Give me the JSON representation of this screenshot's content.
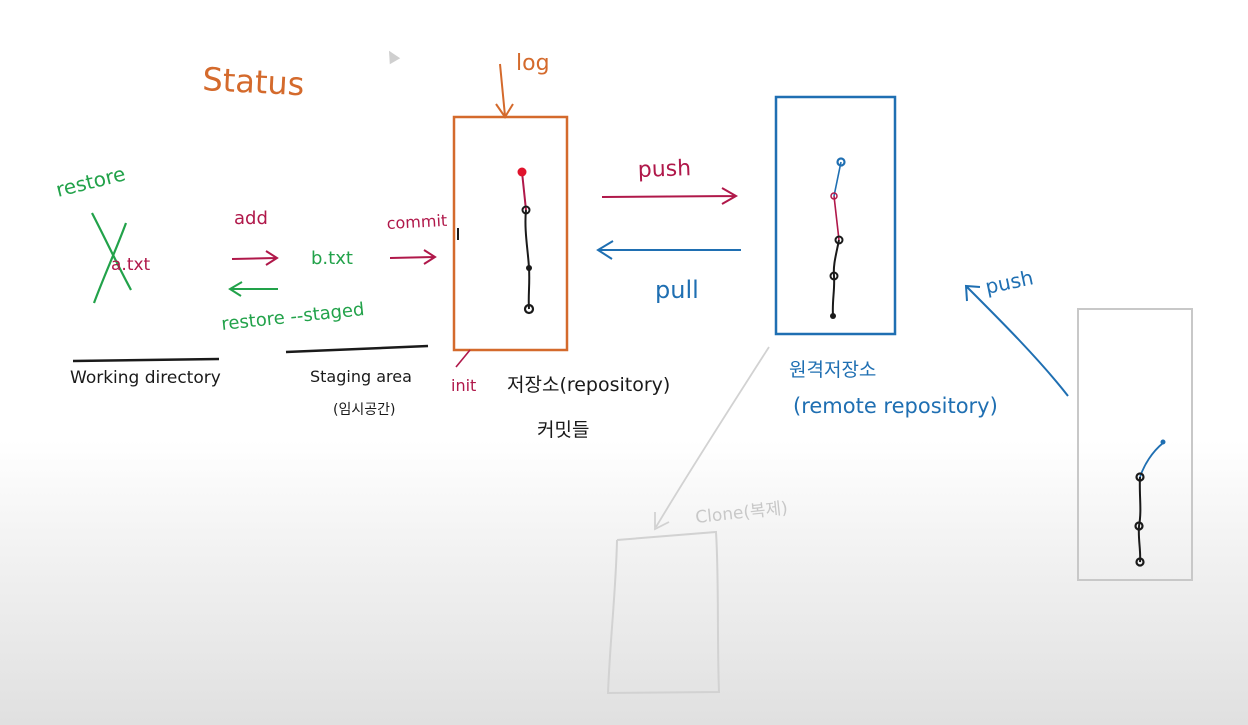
{
  "colors": {
    "orange": "#d46a2c",
    "green": "#22a24a",
    "crimson": "#b0184a",
    "blue": "#1f6fb2",
    "black": "#1a1a1a",
    "red_dot": "#e0132c",
    "gray": "#c8c8c8",
    "faded": "#d2d2d2"
  },
  "labels": {
    "status": "Status",
    "log": "log",
    "restore": "restore",
    "file_a": "a.txt",
    "add": "add",
    "file_b": "b.txt",
    "commit": "commit",
    "restore_staged": "restore --staged",
    "working_directory": "Working directory",
    "staging_area": "Staging area",
    "staging_area_ko": "(임시공간)",
    "init": "init",
    "repository": "저장소(repository)",
    "commits_ko": "커밋들",
    "push_top": "push",
    "pull": "pull",
    "remote_ko": "원격저장소",
    "remote_repository": "(remote repository)",
    "push_right": "push",
    "clone": "Clone(복제)"
  }
}
